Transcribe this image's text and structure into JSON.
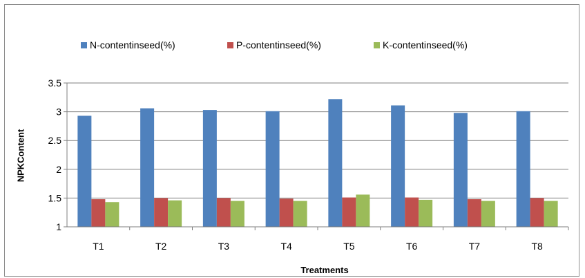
{
  "chart_data": {
    "type": "bar",
    "categories": [
      "T1",
      "T2",
      "T3",
      "T4",
      "T5",
      "T6",
      "T7",
      "T8"
    ],
    "series": [
      {
        "name": "N-contentinseed(%)",
        "color": "#4f81bd",
        "values": [
          2.93,
          3.06,
          3.03,
          3.01,
          3.22,
          3.11,
          2.98,
          3.01
        ]
      },
      {
        "name": "P-contentinseed(%)",
        "color": "#c0504d",
        "values": [
          1.48,
          1.5,
          1.5,
          1.49,
          1.51,
          1.51,
          1.48,
          1.5
        ]
      },
      {
        "name": "K-contentinseed(%)",
        "color": "#9bbb59",
        "values": [
          1.43,
          1.46,
          1.45,
          1.45,
          1.56,
          1.47,
          1.45,
          1.45
        ]
      }
    ],
    "xlabel": "Treatments",
    "ylabel": "NPKContent",
    "ylim": [
      1,
      3.5
    ],
    "yticks": [
      "1",
      "1.5",
      "2",
      "2.5",
      "3",
      "3.5"
    ],
    "grid": true,
    "legend": "top"
  }
}
